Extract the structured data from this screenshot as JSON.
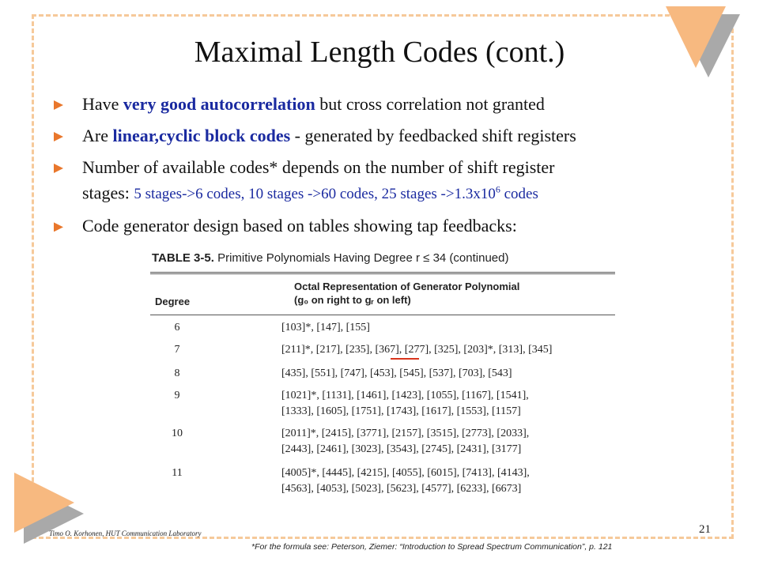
{
  "slide": {
    "title": "Maximal Length Codes (cont.)",
    "bullets": {
      "b1_pre": "Have ",
      "b1_hl": "very good autocorrelation",
      "b1_post": " but cross correlation not granted",
      "b2_pre": "Are ",
      "b2_hl": "linear,cyclic block codes",
      "b2_post": " - generated by feedbacked shift registers",
      "b3_line1": "Number of available codes* depends on the number of shift register",
      "b3_stages": "stages: ",
      "b3_blue": "5 stages->6 codes, 10 stages ->60 codes, 25 stages ->1.3x10",
      "b3_sup": "6",
      "b3_blue_end": " codes",
      "b4": "Code generator design based on tables showing tap feedbacks:"
    }
  },
  "table": {
    "caption_bold": "TABLE 3-5.",
    "caption_rest": "  Primitive Polynomials Having Degree r ≤ 34 (continued)",
    "header_degree": "Degree",
    "header_octal_1": "Octal Representation of Generator Polynomial",
    "header_octal_2": "(g₀ on right to gᵣ on left)",
    "rows": [
      {
        "degree": "6",
        "line1": "[103]*, [147], [155]",
        "line2": ""
      },
      {
        "degree": "7",
        "line1": "[211]*, [217], [235], [367], [277], [325], [203]*, [313], [345]",
        "line2": ""
      },
      {
        "degree": "8",
        "line1": "[435], [551], [747], [453], [545], [537], [703], [543]",
        "line2": ""
      },
      {
        "degree": "9",
        "line1": "[1021]*, [1131], [1461], [1423], [1055], [1167], [1541],",
        "line2": "[1333], [1605], [1751], [1743], [1617], [1553], [1157]"
      },
      {
        "degree": "10",
        "line1": "[2011]*, [2415], [3771], [2157], [3515], [2773], [2033],",
        "line2": "[2443], [2461], [3023], [3543], [2745], [2431], [3177]"
      },
      {
        "degree": "11",
        "line1": "[4005]*, [4445], [4215], [4055], [6015], [7413], [4143],",
        "line2": "[4563], [4053], [5023], [5623], [4577], [6233], [6673]"
      }
    ]
  },
  "footer": {
    "author": "Timo O. Korhonen, HUT Communication Laboratory",
    "page": "21",
    "footnote": "*For the formula see: Peterson, Ziemer: “Introduction to Spread Spectrum Communication”,  p. 121"
  },
  "colors": {
    "accent": "#f7b980",
    "bullet": "#e9772c",
    "highlight": "#1a2aa0"
  }
}
